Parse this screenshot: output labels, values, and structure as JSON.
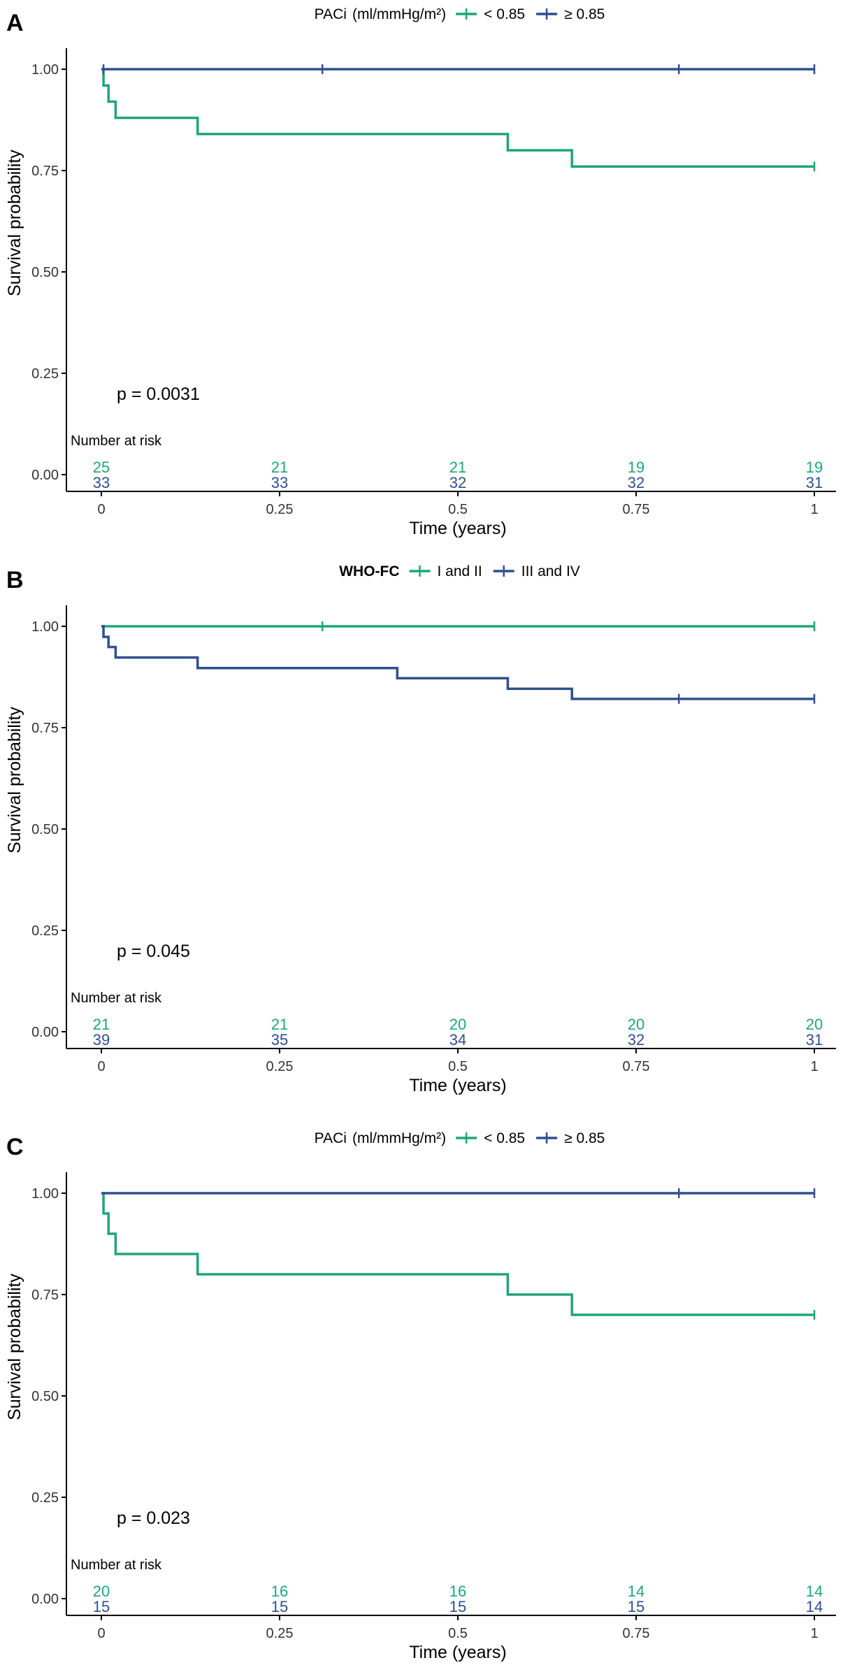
{
  "chart_data": [
    {
      "type": "line",
      "subtype": "kaplan-meier",
      "panel_label": "A",
      "legend": {
        "title": "PACi",
        "title_units": "(ml/mmHg/m²)",
        "title_bold": false,
        "position": "top",
        "entries": [
          "< 0.85",
          "≥ 0.85"
        ]
      },
      "ylabel": "Survival probability",
      "xlabel": "Time (years)",
      "ylim": [
        0,
        1
      ],
      "xlim": [
        0,
        1
      ],
      "y_ticks": [
        "0.00",
        "0.25",
        "0.50",
        "0.75",
        "1.00"
      ],
      "x_ticks": [
        "0",
        "0.25",
        "0.5",
        "0.75",
        "1"
      ],
      "p_value": "p = 0.0031",
      "risk_table_title": "Number at risk",
      "series": [
        {
          "name": "< 0.85",
          "color": "#1fa57a",
          "steps": [
            [
              0,
              1.0
            ],
            [
              0.003,
              0.96
            ],
            [
              0.01,
              0.92
            ],
            [
              0.02,
              0.88
            ],
            [
              0.135,
              0.84
            ],
            [
              0.57,
              0.8
            ],
            [
              0.66,
              0.76
            ],
            [
              1.0,
              0.76
            ]
          ],
          "censor_times": [
            1.0
          ],
          "risk_counts": [
            "25",
            "21",
            "21",
            "19",
            "19"
          ]
        },
        {
          "name": "≥ 0.85",
          "color": "#2e4f91",
          "steps": [
            [
              0,
              1.0
            ],
            [
              1.0,
              1.0
            ]
          ],
          "censor_times": [
            0.003,
            0.31,
            0.81,
            1.0
          ],
          "risk_counts": [
            "33",
            "33",
            "32",
            "32",
            "31"
          ]
        }
      ]
    },
    {
      "type": "line",
      "subtype": "kaplan-meier",
      "panel_label": "B",
      "legend": {
        "title": "WHO-FC",
        "title_units": "",
        "title_bold": true,
        "position": "top",
        "entries": [
          "I and II",
          "III and IV"
        ]
      },
      "ylabel": "Survival probability",
      "xlabel": "Time (years)",
      "ylim": [
        0,
        1
      ],
      "xlim": [
        0,
        1
      ],
      "y_ticks": [
        "0.00",
        "0.25",
        "0.50",
        "0.75",
        "1.00"
      ],
      "x_ticks": [
        "0",
        "0.25",
        "0.5",
        "0.75",
        "1"
      ],
      "p_value": "p = 0.045",
      "risk_table_title": "Number at risk",
      "series": [
        {
          "name": "I and II",
          "color": "#1fa57a",
          "steps": [
            [
              0,
              1.0
            ],
            [
              1.0,
              1.0
            ]
          ],
          "censor_times": [
            0.31,
            1.0
          ],
          "risk_counts": [
            "21",
            "21",
            "20",
            "20",
            "20"
          ]
        },
        {
          "name": "III and IV",
          "color": "#2e4f91",
          "steps": [
            [
              0,
              1.0
            ],
            [
              0.003,
              0.974
            ],
            [
              0.01,
              0.949
            ],
            [
              0.02,
              0.923
            ],
            [
              0.135,
              0.897
            ],
            [
              0.415,
              0.872
            ],
            [
              0.57,
              0.846
            ],
            [
              0.66,
              0.821
            ],
            [
              1.0,
              0.821
            ]
          ],
          "censor_times": [
            0.81,
            1.0
          ],
          "risk_counts": [
            "39",
            "35",
            "34",
            "32",
            "31"
          ]
        }
      ]
    },
    {
      "type": "line",
      "subtype": "kaplan-meier",
      "panel_label": "C",
      "legend": {
        "title": "PACi",
        "title_units": "(ml/mmHg/m²)",
        "title_bold": false,
        "position": "top",
        "entries": [
          "< 0.85",
          "≥ 0.85"
        ]
      },
      "ylabel": "Survival probability",
      "xlabel": "Time (years)",
      "ylim": [
        0,
        1
      ],
      "xlim": [
        0,
        1
      ],
      "y_ticks": [
        "0.00",
        "0.25",
        "0.50",
        "0.75",
        "1.00"
      ],
      "x_ticks": [
        "0",
        "0.25",
        "0.5",
        "0.75",
        "1"
      ],
      "p_value": "p = 0.023",
      "risk_table_title": "Number at risk",
      "series": [
        {
          "name": "< 0.85",
          "color": "#1fa57a",
          "steps": [
            [
              0,
              1.0
            ],
            [
              0.003,
              0.95
            ],
            [
              0.01,
              0.9
            ],
            [
              0.02,
              0.85
            ],
            [
              0.135,
              0.8
            ],
            [
              0.57,
              0.75
            ],
            [
              0.66,
              0.7
            ],
            [
              1.0,
              0.7
            ]
          ],
          "censor_times": [
            1.0
          ],
          "risk_counts": [
            "20",
            "16",
            "16",
            "14",
            "14"
          ]
        },
        {
          "name": "≥ 0.85",
          "color": "#2e4f91",
          "steps": [
            [
              0,
              1.0
            ],
            [
              1.0,
              1.0
            ]
          ],
          "censor_times": [
            0.81,
            1.0
          ],
          "risk_counts": [
            "15",
            "15",
            "15",
            "15",
            "14"
          ]
        }
      ]
    }
  ]
}
